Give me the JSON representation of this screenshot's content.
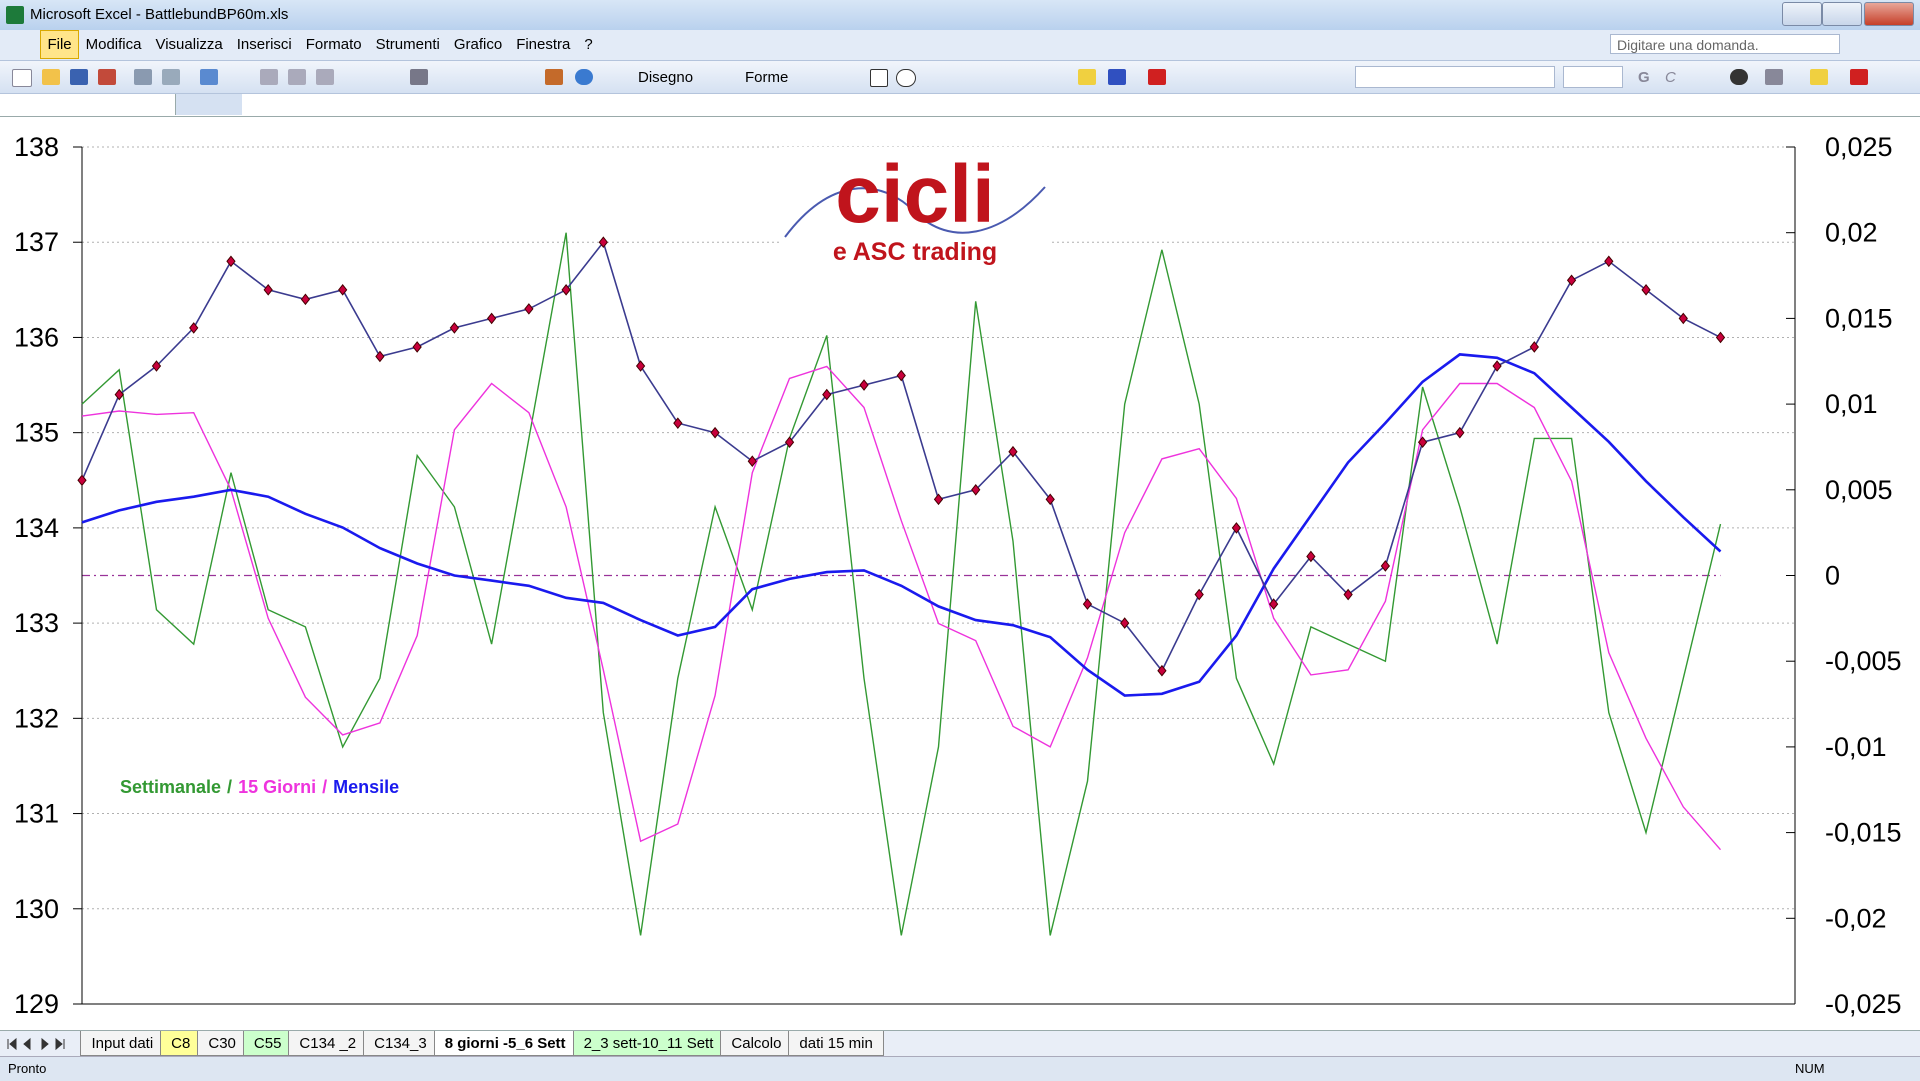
{
  "window": {
    "title": "Microsoft Excel - BattlebundBP60m.xls"
  },
  "menu": [
    "File",
    "Modifica",
    "Visualizza",
    "Inserisci",
    "Formato",
    "Strumenti",
    "Grafico",
    "Finestra",
    "?"
  ],
  "help_box": "Digitare una domanda.",
  "toolbar": {
    "drawing": "Disegno",
    "shapes": "Forme",
    "bold": "G",
    "italic": "C"
  },
  "logo": {
    "title": "cicli",
    "subtitle": "e ASC trading"
  },
  "chart_data": {
    "type": "line",
    "legend_separator": "/",
    "x": [
      0,
      1,
      2,
      3,
      4,
      5,
      6,
      7,
      8,
      9,
      10,
      11,
      12,
      13,
      14,
      15,
      16,
      17,
      18,
      19,
      20,
      21,
      22,
      23,
      24,
      25,
      26,
      27,
      28,
      29,
      30,
      31,
      32,
      33,
      34,
      35,
      36,
      37,
      38,
      39,
      40,
      41,
      42,
      43,
      44
    ],
    "xlim": [
      0,
      46
    ],
    "ylim": [
      129,
      138
    ],
    "yticks": [
      129,
      130,
      131,
      132,
      133,
      134,
      135,
      136,
      137,
      138
    ],
    "y2lim": [
      -0.025,
      0.025
    ],
    "y2ticks": [
      {
        "value": -0.025,
        "label": "-0,025"
      },
      {
        "value": -0.02,
        "label": "-0,02"
      },
      {
        "value": -0.015,
        "label": "-0,015"
      },
      {
        "value": -0.01,
        "label": "-0,01"
      },
      {
        "value": -0.005,
        "label": "-0,005"
      },
      0,
      {
        "value": 0.005,
        "label": "0,005"
      },
      {
        "value": 0.01,
        "label": "0,01"
      },
      {
        "value": 0.015,
        "label": "0,015"
      },
      {
        "value": 0.02,
        "label": "0,02"
      },
      {
        "value": 0.025,
        "label": "0,025"
      }
    ],
    "grid": true,
    "series": [
      {
        "color": "#3b3b8f",
        "marker": "diamond",
        "marker_color": "#c8003c",
        "values": [
          134.5,
          135.4,
          135.7,
          136.1,
          136.8,
          136.5,
          136.4,
          136.5,
          135.8,
          135.9,
          136.1,
          136.2,
          136.3,
          136.5,
          137.0,
          135.7,
          135.1,
          135.0,
          134.7,
          134.9,
          135.4,
          135.5,
          135.6,
          134.3,
          134.4,
          134.8,
          134.3,
          133.2,
          133.0,
          132.5,
          133.3,
          134.0,
          133.2,
          133.7,
          133.3,
          133.6,
          134.9,
          135.0,
          135.7,
          135.9,
          136.6,
          136.8,
          136.5,
          136.2,
          136.0
        ]
      },
      {
        "name": "Settimanale",
        "color": "#339933",
        "axis": "y2",
        "values": [
          0.01,
          0.012,
          -0.002,
          -0.004,
          0.006,
          -0.002,
          -0.003,
          -0.01,
          -0.006,
          0.007,
          0.004,
          -0.004,
          0.008,
          0.02,
          -0.008,
          -0.021,
          -0.006,
          0.004,
          -0.002,
          0.008,
          0.014,
          -0.006,
          -0.021,
          -0.01,
          0.016,
          0.002,
          -0.021,
          -0.012,
          0.01,
          0.019,
          0.01,
          -0.006,
          -0.011,
          -0.003,
          -0.004,
          -0.005,
          0.011,
          0.004,
          -0.004,
          0.008,
          0.008,
          -0.008,
          -0.015,
          -0.006,
          0.003
        ]
      },
      {
        "name": "15 Giorni",
        "color": "#ee33dd",
        "axis": "y2",
        "values": [
          0.0093,
          0.0096,
          0.0094,
          0.0095,
          0.005,
          -0.0025,
          -0.0071,
          -0.0093,
          -0.0086,
          -0.0035,
          0.0085,
          0.0112,
          0.0095,
          0.004,
          -0.0055,
          -0.0155,
          -0.0145,
          -0.007,
          0.006,
          0.0115,
          0.0122,
          0.0098,
          0.0032,
          -0.0028,
          -0.0038,
          -0.0088,
          -0.01,
          -0.0048,
          0.0025,
          0.0068,
          0.0074,
          0.0045,
          -0.0025,
          -0.0058,
          -0.0055,
          -0.0015,
          0.0085,
          0.0112,
          0.0112,
          0.0098,
          0.0055,
          -0.0045,
          -0.0095,
          -0.0135,
          -0.016
        ]
      },
      {
        "name": "Mensile",
        "color": "#1a1aee",
        "axis": "y2",
        "values": [
          0.0031,
          0.0038,
          0.0043,
          0.0046,
          0.005,
          0.0046,
          0.0036,
          0.0028,
          0.0016,
          0.0007,
          0,
          -0.0003,
          -0.0006,
          -0.0013,
          -0.0016,
          -0.0026,
          -0.0035,
          -0.003,
          -0.0008,
          -0.0002,
          0.0002,
          0.0003,
          -0.0006,
          -0.0018,
          -0.0026,
          -0.0029,
          -0.0036,
          -0.0055,
          -0.007,
          -0.0069,
          -0.0062,
          -0.0035,
          0.0004,
          0.0035,
          0.0066,
          0.0089,
          0.0113,
          0.0129,
          0.0127,
          0.0118,
          0.0098,
          0.0078,
          0.0055,
          0.0034,
          0.0014
        ]
      }
    ]
  },
  "sheet_tabs": [
    {
      "label": "Input dati"
    },
    {
      "label": "C8",
      "color": "#ffff99"
    },
    {
      "label": "C30"
    },
    {
      "label": "C55",
      "color": "#ccffcc"
    },
    {
      "label": "C134 _2"
    },
    {
      "label": "C134_3"
    },
    {
      "label": "8 giorni -5_6 Sett",
      "active": true
    },
    {
      "label": "2_3 sett-10_11 Sett",
      "color": "#ccffcc"
    },
    {
      "label": "Calcolo"
    },
    {
      "label": "dati 15 min"
    }
  ],
  "status_bar": {
    "left": "Pronto",
    "num": "NUM"
  }
}
